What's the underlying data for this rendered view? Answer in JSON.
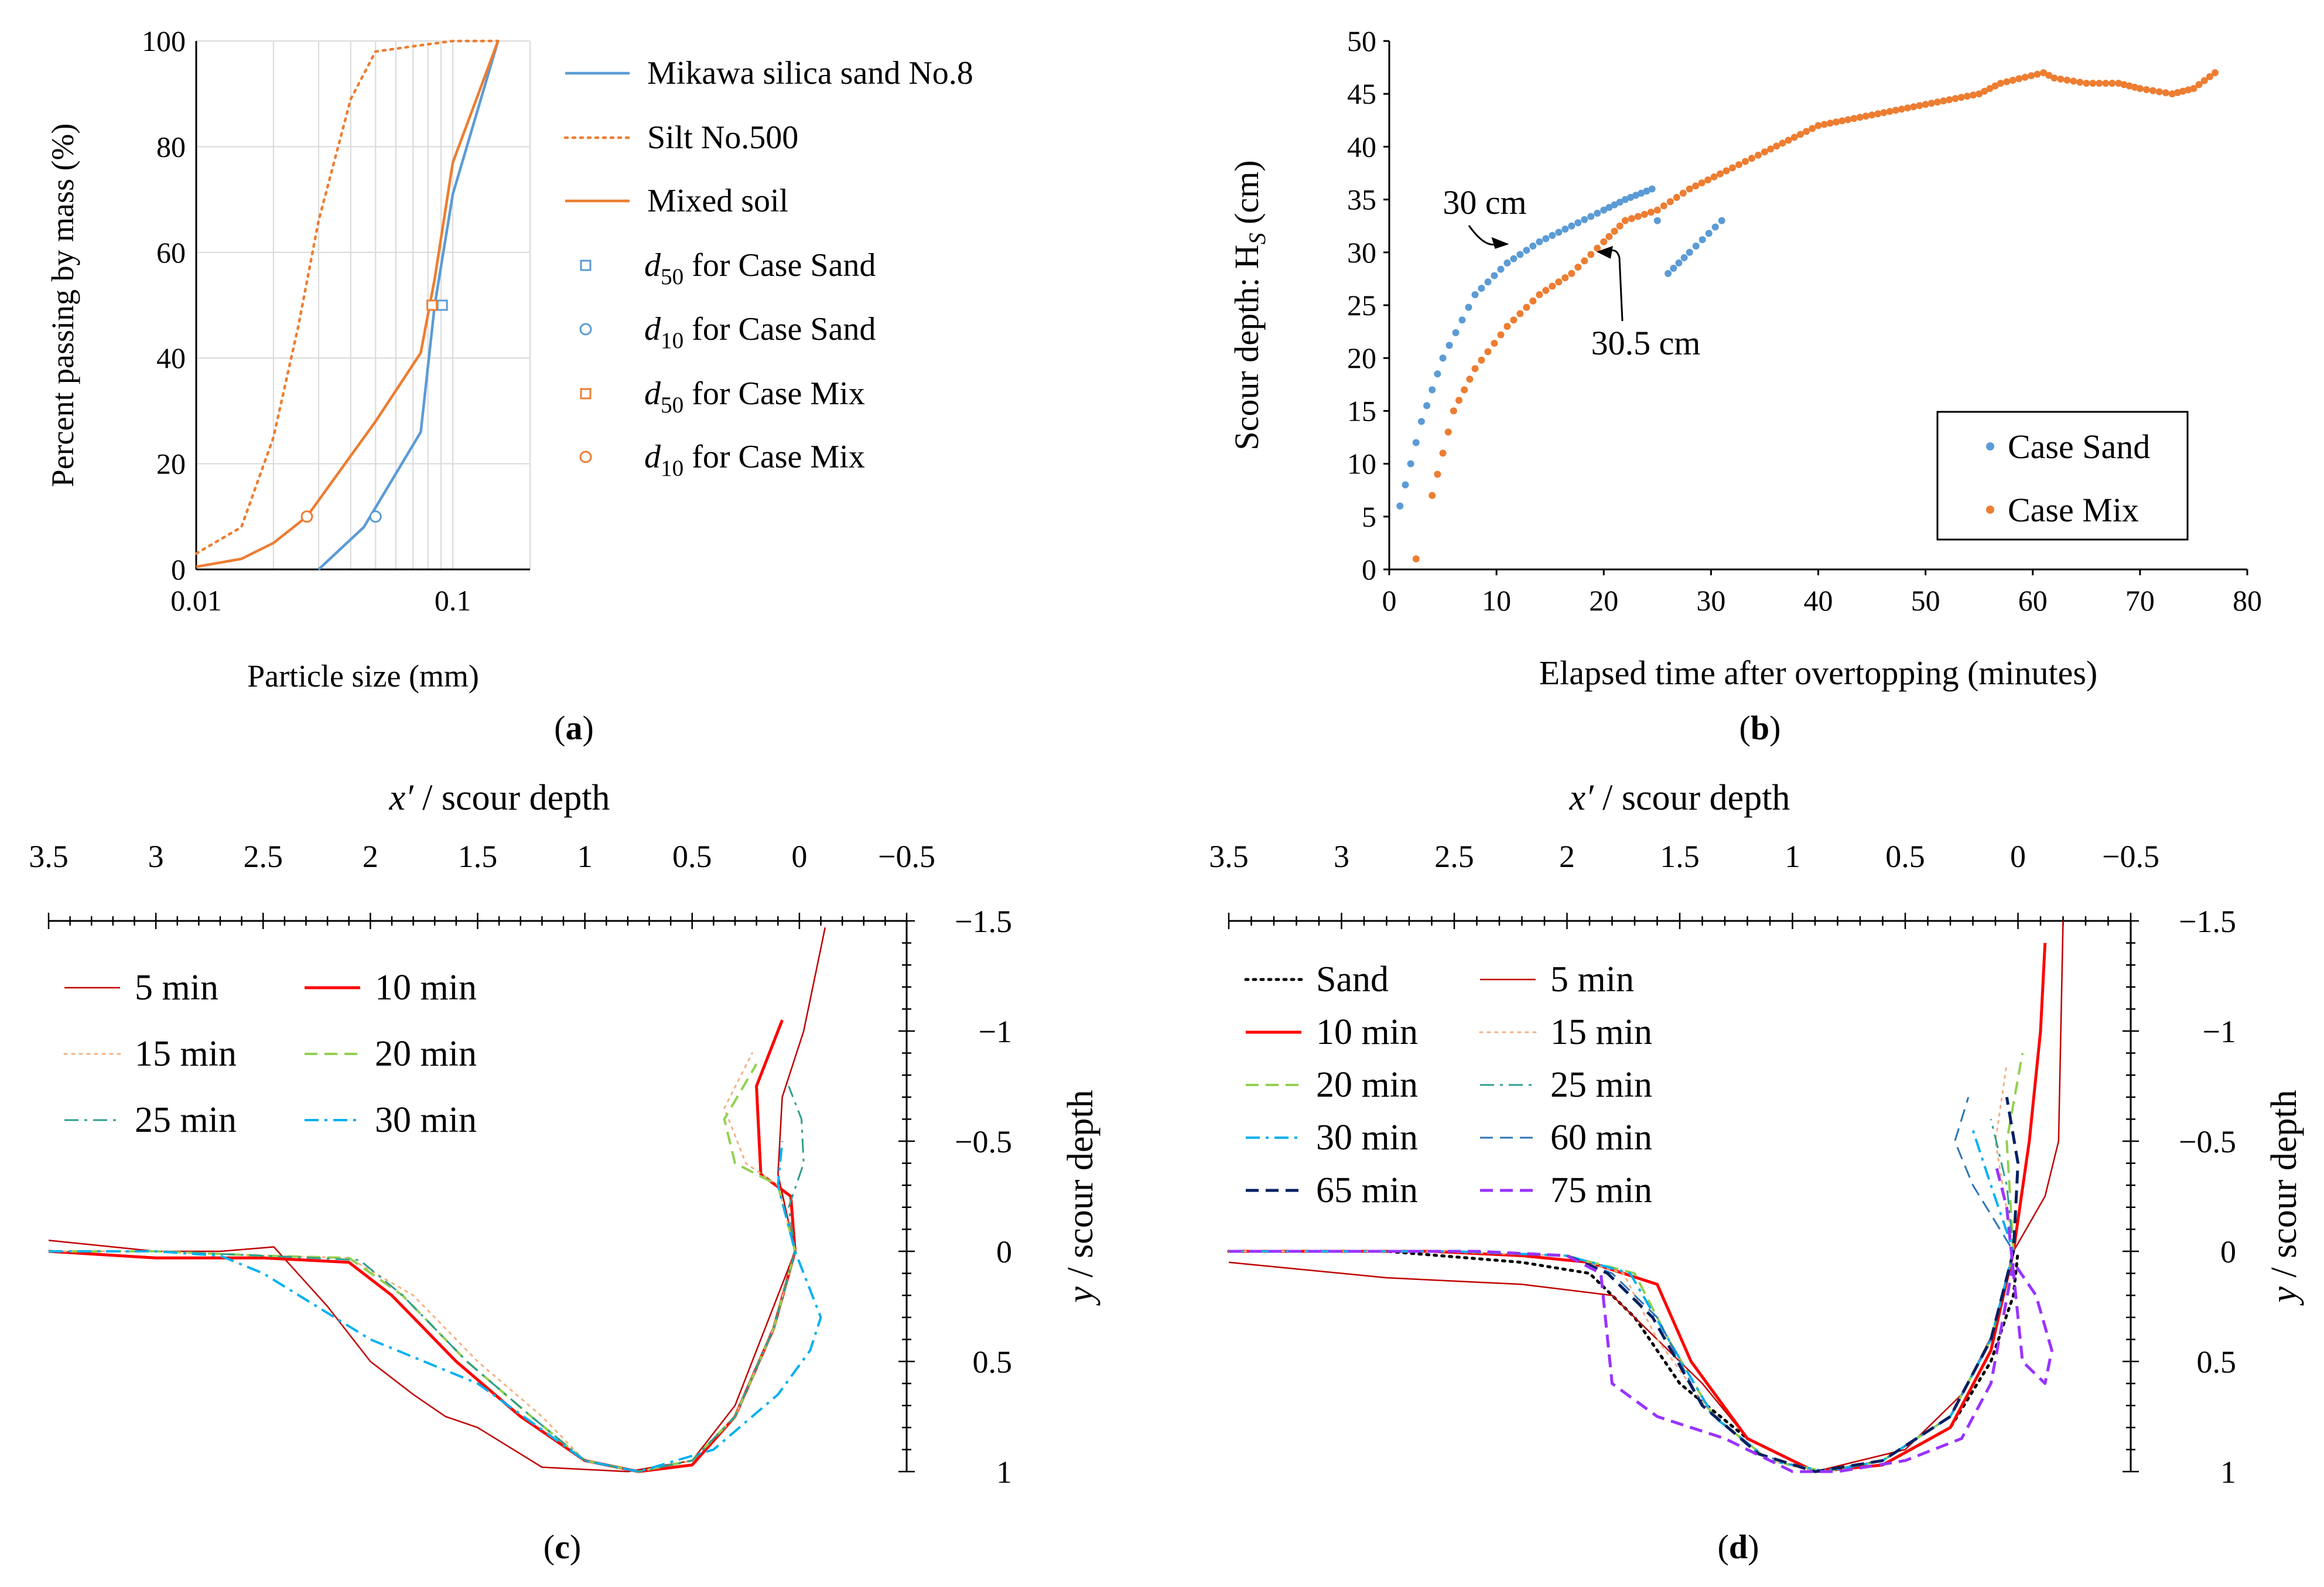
{
  "chart_data": [
    {
      "type": "line",
      "panel_label": "a",
      "xlabel": "Particle size (mm)",
      "ylabel": "Percent passing by mass (%)",
      "xscale": "log",
      "xlim": [
        0.01,
        0.2
      ],
      "ylim": [
        0,
        100
      ],
      "x_ticks": [
        "0.01",
        "0.1"
      ],
      "y_ticks": [
        "0",
        "20",
        "40",
        "60",
        "80",
        "100"
      ],
      "grid": true,
      "legend_position": "right",
      "series": [
        {
          "name": "Mikawa silica sand No.8",
          "color": "#5b9bd5",
          "style": "solid",
          "x": [
            0.03,
            0.045,
            0.075,
            0.085,
            0.1,
            0.15
          ],
          "y": [
            0,
            8,
            26,
            50,
            71,
            100
          ]
        },
        {
          "name": "Silt No.500",
          "color": "#ed7d31",
          "style": "dotted",
          "x": [
            0.01,
            0.015,
            0.02,
            0.025,
            0.03,
            0.04,
            0.05,
            0.07,
            0.1,
            0.15
          ],
          "y": [
            3,
            8,
            25,
            46,
            66,
            89,
            98,
            99,
            100,
            100
          ]
        },
        {
          "name": "Mixed soil",
          "color": "#ed7d31",
          "style": "solid",
          "x": [
            0.01,
            0.015,
            0.02,
            0.027,
            0.05,
            0.075,
            0.085,
            0.1,
            0.15
          ],
          "y": [
            0.5,
            2,
            5,
            10,
            28,
            41,
            55,
            77,
            100
          ]
        }
      ],
      "markers": [
        {
          "name": "d50 for Case Sand",
          "sub": "50",
          "rest": " for Case Sand",
          "color": "#5b9bd5",
          "shape": "square",
          "x": 0.091,
          "y": 50
        },
        {
          "name": "d10 for Case Sand",
          "sub": "10",
          "rest": " for Case Sand",
          "color": "#5b9bd5",
          "shape": "circle",
          "x": 0.05,
          "y": 10
        },
        {
          "name": "d50 for Case Mix",
          "sub": "50",
          "rest": " for Case Mix",
          "color": "#ed7d31",
          "shape": "square",
          "x": 0.083,
          "y": 50
        },
        {
          "name": "d10 for Case Mix",
          "sub": "10",
          "rest": " for Case Mix",
          "color": "#ed7d31",
          "shape": "circle",
          "x": 0.027,
          "y": 10
        }
      ]
    },
    {
      "type": "scatter",
      "panel_label": "b",
      "xlabel": "Elapsed time after overtopping (minutes)",
      "ylabel_main": "Scour depth: H",
      "ylabel_sub": "S",
      "ylabel_unit": " (cm)",
      "xlim": [
        0,
        80
      ],
      "ylim": [
        0,
        50
      ],
      "x_ticks": [
        "0",
        "10",
        "20",
        "30",
        "40",
        "50",
        "60",
        "70",
        "80"
      ],
      "y_ticks": [
        "0",
        "5",
        "10",
        "15",
        "20",
        "25",
        "30",
        "35",
        "40",
        "45",
        "50"
      ],
      "legend_position": "bottom-right",
      "series": [
        {
          "name": "Case Sand",
          "color": "#5b9bd5",
          "x": [
            1,
            3,
            5,
            8,
            11,
            14,
            17,
            20,
            22,
            24.5,
            25,
            26,
            28,
            31
          ],
          "y": [
            6,
            14,
            20,
            26,
            29,
            31,
            32.5,
            34,
            35,
            36,
            33,
            28,
            30,
            33
          ]
        },
        {
          "name": "Case Mix",
          "color": "#ed7d31",
          "x": [
            2.5,
            4,
            6,
            8,
            11,
            14,
            17,
            20,
            22,
            25,
            28,
            32,
            35,
            40,
            45,
            50,
            55,
            57,
            61,
            62,
            65,
            68,
            70,
            73,
            75,
            77
          ],
          "y": [
            1,
            7,
            15,
            19,
            23,
            26,
            28,
            31,
            33,
            34,
            36,
            38,
            39.5,
            42,
            43,
            44,
            45,
            46,
            47,
            46.5,
            46,
            46,
            45.5,
            45,
            45.5,
            47
          ]
        }
      ],
      "annotations": [
        {
          "text": "30 cm",
          "x": 11.5,
          "y": 30
        },
        {
          "text": "30.5 cm",
          "x": 19,
          "y": 30.5
        }
      ]
    },
    {
      "type": "line",
      "panel_label": "c",
      "xlabel": "x′ / scour depth",
      "ylabel": "y / scour depth",
      "xlim": [
        3.5,
        -0.5
      ],
      "ylim": [
        -1.5,
        1
      ],
      "x_ticks": [
        "3.5",
        "3",
        "2.5",
        "2",
        "1.5",
        "1",
        "0.5",
        "0",
        "−0.5"
      ],
      "y_ticks": [
        "−1.5",
        "−1",
        "−0.5",
        "0",
        "0.5",
        "1"
      ],
      "legend_position": "top-left",
      "series": [
        {
          "name": "5 min",
          "color": "#c00000",
          "style": "solid",
          "width": 2.5,
          "x": [
            3.5,
            3.0,
            2.7,
            2.45,
            2.2,
            2.0,
            1.8,
            1.65,
            1.5,
            1.2,
            0.8,
            0.5,
            0.3,
            0.12,
            0.02,
            0.1,
            0.08,
            -0.02,
            -0.12
          ],
          "y": [
            -0.05,
            0,
            0,
            -0.02,
            0.25,
            0.5,
            0.65,
            0.75,
            0.8,
            0.98,
            1.0,
            0.95,
            0.7,
            0.25,
            0,
            -0.35,
            -0.7,
            -1.0,
            -1.47
          ]
        },
        {
          "name": "10 min",
          "color": "#ff0000",
          "style": "solid",
          "width": 5,
          "x": [
            3.5,
            3.0,
            2.5,
            2.1,
            1.9,
            1.6,
            1.3,
            1.0,
            0.75,
            0.5,
            0.3,
            0.12,
            0.02,
            0.04,
            0.18,
            0.2,
            0.08
          ],
          "y": [
            0,
            0.03,
            0.03,
            0.05,
            0.2,
            0.5,
            0.75,
            0.95,
            1.0,
            0.97,
            0.75,
            0.35,
            0,
            -0.25,
            -0.35,
            -0.75,
            -1.05
          ]
        },
        {
          "name": "15 min",
          "color": "#f4b183",
          "style": "dotted",
          "width": 3,
          "x": [
            3.5,
            3.0,
            2.5,
            2.1,
            1.8,
            1.5,
            1.2,
            1.0,
            0.75,
            0.5,
            0.3,
            0.12,
            0.02,
            0.1,
            0.25,
            0.35,
            0.22
          ],
          "y": [
            0,
            0,
            0.02,
            0.03,
            0.2,
            0.5,
            0.75,
            0.95,
            1.0,
            0.95,
            0.75,
            0.35,
            0,
            -0.3,
            -0.4,
            -0.65,
            -0.9
          ]
        },
        {
          "name": "20 min",
          "color": "#92d050",
          "style": "dashed",
          "width": 4,
          "x": [
            3.5,
            3.0,
            2.5,
            2.1,
            1.85,
            1.55,
            1.25,
            1.0,
            0.75,
            0.5,
            0.3,
            0.12,
            0.02,
            0.1,
            0.3,
            0.35,
            0.2
          ],
          "y": [
            0,
            0,
            0.02,
            0.03,
            0.2,
            0.5,
            0.75,
            0.95,
            1.0,
            0.95,
            0.75,
            0.35,
            0,
            -0.3,
            -0.4,
            -0.6,
            -0.85
          ]
        },
        {
          "name": "25 min",
          "color": "#2e9e8f",
          "style": "dashdot",
          "width": 3,
          "x": [
            3.5,
            3.0,
            2.5,
            2.05,
            1.85,
            1.55,
            1.25,
            1.0,
            0.75,
            0.5,
            0.3,
            0.12,
            0.02,
            0.05,
            -0.02,
            -0.01,
            0.05
          ],
          "y": [
            0,
            0,
            0.02,
            0.04,
            0.2,
            0.5,
            0.75,
            0.95,
            1.0,
            0.95,
            0.75,
            0.35,
            0,
            -0.2,
            -0.4,
            -0.6,
            -0.75
          ]
        },
        {
          "name": "30 min",
          "color": "#00b0f0",
          "style": "dashdot",
          "width": 4,
          "x": [
            3.5,
            3.0,
            2.7,
            2.5,
            2.0,
            1.5,
            1.0,
            0.75,
            0.4,
            0.1,
            -0.05,
            -0.1,
            0.02,
            0.1,
            0.08
          ],
          "y": [
            0,
            0,
            0.02,
            0.1,
            0.4,
            0.6,
            0.95,
            1.0,
            0.9,
            0.65,
            0.45,
            0.3,
            0,
            -0.3,
            -0.5
          ]
        }
      ]
    },
    {
      "type": "line",
      "panel_label": "d",
      "xlabel": "x′ / scour depth",
      "ylabel": "y / scour depth",
      "xlim": [
        3.5,
        -0.5
      ],
      "ylim": [
        -1.5,
        1
      ],
      "x_ticks": [
        "3.5",
        "3",
        "2.5",
        "2",
        "1.5",
        "1",
        "0.5",
        "0",
        "−0.5"
      ],
      "y_ticks": [
        "−1.5",
        "−1",
        "−0.5",
        "0",
        "0.5",
        "1"
      ],
      "legend_position": "top-left",
      "series": [
        {
          "name": "Sand",
          "color": "#000000",
          "style": "dotted",
          "width": 5,
          "x": [
            3.5,
            2.8,
            2.2,
            1.9,
            1.7,
            1.5,
            1.2,
            0.9,
            0.6,
            0.3,
            0.12,
            0.02,
            0.0
          ],
          "y": [
            0,
            0,
            0.05,
            0.1,
            0.3,
            0.6,
            0.85,
            1.0,
            0.97,
            0.8,
            0.5,
            0.2,
            0
          ]
        },
        {
          "name": "5 min",
          "color": "#c00000",
          "style": "solid",
          "width": 2.5,
          "x": [
            3.5,
            2.8,
            2.2,
            1.8,
            1.6,
            1.4,
            1.2,
            0.9,
            0.5,
            0.25,
            0.1,
            0.02,
            -0.12,
            -0.18,
            -0.2
          ],
          "y": [
            0.05,
            0.12,
            0.15,
            0.2,
            0.4,
            0.6,
            0.85,
            1.0,
            0.9,
            0.65,
            0.35,
            0,
            -0.25,
            -0.5,
            -1.5
          ]
        },
        {
          "name": "10 min",
          "color": "#ff0000",
          "style": "solid",
          "width": 5,
          "x": [
            3.5,
            2.6,
            2.2,
            1.9,
            1.6,
            1.45,
            1.2,
            0.9,
            0.6,
            0.3,
            0.12,
            0.02,
            -0.05,
            -0.1,
            -0.12
          ],
          "y": [
            0,
            0,
            0.02,
            0.05,
            0.15,
            0.5,
            0.85,
            1.0,
            0.97,
            0.8,
            0.45,
            0,
            -0.5,
            -1.0,
            -1.4
          ]
        },
        {
          "name": "15 min",
          "color": "#f4b183",
          "style": "dotted",
          "width": 3,
          "x": [
            3.5,
            2.6,
            2.0,
            1.75,
            1.6,
            1.35,
            1.1,
            0.9,
            0.6,
            0.3,
            0.12,
            0.02,
            0.1,
            0.05
          ],
          "y": [
            0,
            0,
            0.02,
            0.1,
            0.4,
            0.75,
            0.95,
            1.0,
            0.95,
            0.75,
            0.4,
            0,
            -0.5,
            -0.85
          ]
        },
        {
          "name": "20 min",
          "color": "#92d050",
          "style": "dashed",
          "width": 4,
          "x": [
            3.5,
            2.5,
            2.0,
            1.7,
            1.55,
            1.35,
            1.1,
            0.85,
            0.6,
            0.3,
            0.12,
            0.02,
            0.05,
            -0.02
          ],
          "y": [
            0,
            0,
            0.02,
            0.1,
            0.4,
            0.75,
            0.95,
            1.0,
            0.95,
            0.75,
            0.4,
            0,
            -0.5,
            -0.9
          ]
        },
        {
          "name": "25 min",
          "color": "#2e9e8f",
          "style": "dashdot",
          "width": 3,
          "x": [
            3.5,
            2.5,
            2.0,
            1.72,
            1.55,
            1.35,
            1.1,
            0.85,
            0.6,
            0.3,
            0.12,
            0.02,
            0.05,
            0.12
          ],
          "y": [
            0,
            0,
            0.02,
            0.1,
            0.4,
            0.75,
            0.95,
            1.0,
            0.95,
            0.75,
            0.4,
            0,
            -0.3,
            -0.6
          ]
        },
        {
          "name": "30 min",
          "color": "#00b0f0",
          "style": "dashdot",
          "width": 4,
          "x": [
            3.5,
            2.5,
            2.0,
            1.72,
            1.55,
            1.35,
            1.1,
            0.85,
            0.6,
            0.3,
            0.12,
            0.02,
            0.12,
            0.2
          ],
          "y": [
            0,
            0,
            0.02,
            0.1,
            0.4,
            0.75,
            0.95,
            1.0,
            0.95,
            0.75,
            0.4,
            0,
            -0.3,
            -0.55
          ]
        },
        {
          "name": "60 min",
          "color": "#2e75b6",
          "style": "dashed",
          "width": 3,
          "x": [
            3.5,
            2.5,
            2.0,
            1.8,
            1.6,
            1.4,
            1.15,
            0.9,
            0.6,
            0.3,
            0.12,
            0.02,
            0.2,
            0.28,
            0.22
          ],
          "y": [
            0,
            0,
            0.02,
            0.1,
            0.3,
            0.7,
            0.92,
            1.0,
            0.95,
            0.75,
            0.4,
            0,
            -0.3,
            -0.5,
            -0.7
          ]
        },
        {
          "name": "65 min",
          "color": "#002060",
          "style": "dashed",
          "width": 5,
          "x": [
            3.5,
            2.4,
            2.0,
            1.82,
            1.62,
            1.4,
            1.15,
            0.9,
            0.6,
            0.3,
            0.12,
            0.02,
            0.0,
            0.05
          ],
          "y": [
            0,
            0,
            0.02,
            0.1,
            0.3,
            0.7,
            0.92,
            1.0,
            0.95,
            0.75,
            0.4,
            0,
            -0.4,
            -0.7
          ]
        },
        {
          "name": "75 min",
          "color": "#9933ff",
          "style": "dashed",
          "width": 5,
          "x": [
            3.5,
            2.4,
            2.0,
            1.85,
            1.8,
            1.6,
            1.3,
            1.0,
            0.8,
            0.5,
            0.25,
            0.12,
            0.02,
            -0.08,
            -0.15,
            -0.12,
            -0.02,
            0.05,
            0.1
          ],
          "y": [
            0,
            0,
            0.02,
            0.1,
            0.6,
            0.75,
            0.85,
            1.0,
            1.0,
            0.95,
            0.85,
            0.6,
            0.05,
            0.2,
            0.45,
            0.6,
            0.5,
            -0.2,
            -0.4
          ]
        }
      ]
    }
  ]
}
